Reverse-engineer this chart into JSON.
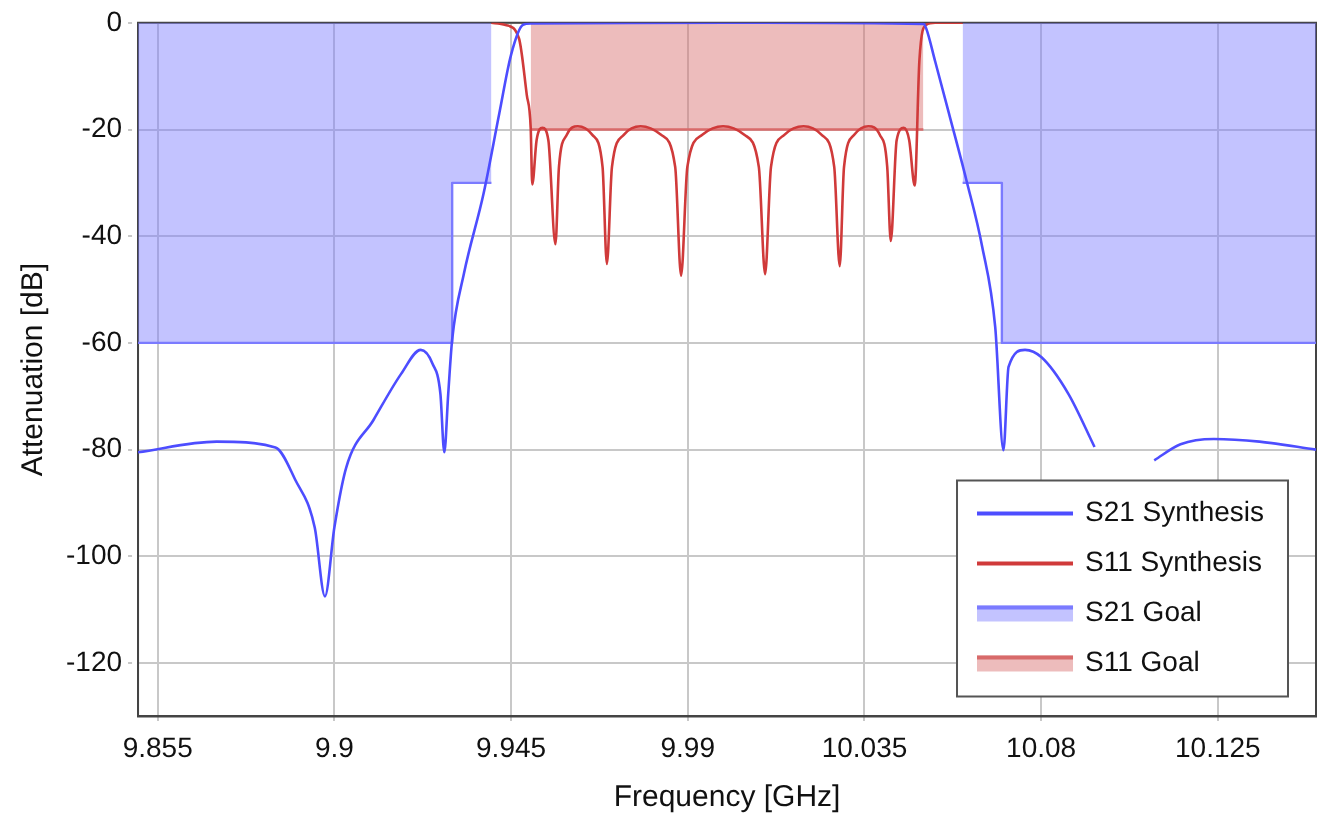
{
  "chart_data": {
    "type": "line",
    "xlabel": "Frequency [GHz]",
    "ylabel": "Attenuation [dB]",
    "xlim": [
      9.85,
      10.15
    ],
    "xticks": [
      9.855,
      9.9,
      9.945,
      9.99,
      10.035,
      10.08,
      10.125
    ],
    "ylim": [
      -130,
      0
    ],
    "yticks": [
      -120,
      -100,
      -80,
      -60,
      -40,
      -20,
      0
    ],
    "grid": true,
    "legend": "bottom right",
    "marker": "none",
    "line_style": "solid",
    "series": [
      {
        "name": "S21 Synthesis",
        "color": "#4d4dff",
        "x": [
          9.85,
          9.87,
          9.885,
          9.89,
          9.895,
          9.8976,
          9.9,
          9.903,
          9.91,
          9.917,
          9.922,
          9.925,
          9.927,
          9.928,
          9.929,
          9.93,
          9.933,
          9.938,
          9.942,
          9.945,
          9.948,
          9.95,
          10.0,
          10.05,
          10.0507,
          10.053,
          10.0566,
          10.061,
          10.065,
          10.0683,
          10.0704,
          10.0717,
          10.0759,
          10.0801,
          10.0869,
          10.0936,
          10.0987,
          10.102,
          10.1054,
          10.1088,
          10.1155,
          10.124,
          10.1356,
          10.15
        ],
        "values": [
          -80.5,
          -78.5,
          -79.6,
          -85.6,
          -94.6,
          -107.5,
          -94.6,
          -83.4,
          -74.4,
          -65.8,
          -61.3,
          -63.9,
          -69.5,
          -80.5,
          -69.5,
          -59.4,
          -47,
          -32,
          -17,
          -6,
          -0.4,
          -0.1,
          0,
          -0.2,
          -1,
          -7.2,
          -17.2,
          -29.6,
          -42,
          -57,
          -80.1,
          -64.5,
          -61.3,
          -62.7,
          -69.5,
          -79.5,
          null,
          null,
          null,
          -82,
          -79,
          -78,
          -78.5,
          -80
        ]
      },
      {
        "name": "S11 Synthesis",
        "color": "#d03a3a",
        "x": [
          9.94,
          9.9436,
          9.947,
          9.949,
          9.95,
          9.9504,
          9.9515,
          9.953,
          9.9545,
          9.9563,
          9.9572,
          9.9592,
          9.962,
          9.9657,
          9.9683,
          9.9694,
          9.9707,
          9.9737,
          9.978,
          9.9832,
          9.9868,
          9.9883,
          9.9899,
          9.9937,
          9.999,
          10.0044,
          10.0081,
          10.0097,
          10.0112,
          10.0146,
          10.0195,
          10.0241,
          10.0273,
          10.0287,
          10.0298,
          10.0324,
          10.036,
          10.0389,
          10.0408,
          10.0417,
          10.0432,
          10.045,
          10.0464,
          10.0478,
          10.049,
          10.0507,
          10.053,
          10.06
        ],
        "values": [
          0,
          -0.4,
          -2.9,
          -13.5,
          -19.7,
          -30.3,
          -22,
          -19.7,
          -22,
          -41.5,
          -27,
          -21,
          -19.4,
          -21,
          -27,
          -45.2,
          -27,
          -21,
          -19.4,
          -21,
          -27,
          -47.4,
          -27,
          -21,
          -19.4,
          -21,
          -27,
          -47.1,
          -27,
          -21,
          -19.4,
          -21,
          -27,
          -45.6,
          -27,
          -21,
          -19.4,
          -21,
          -27,
          -40.9,
          -22,
          -19.7,
          -22,
          -30.5,
          -7,
          -0.4,
          0,
          0
        ]
      },
      {
        "name": "S21 Goal",
        "type": "area",
        "color": "#7b7bff",
        "x": [
          9.85,
          9.93,
          9.93,
          9.94,
          9.945,
          10.06,
          10.07,
          10.07,
          10.15
        ],
        "values": [
          -60,
          -60,
          -30,
          -30,
          null,
          -30,
          -30,
          -60,
          -60
        ]
      },
      {
        "name": "S11 Goal",
        "type": "area",
        "color": "#d86a6a",
        "x": [
          9.95,
          10.05
        ],
        "values": [
          -20,
          -20
        ]
      }
    ]
  }
}
